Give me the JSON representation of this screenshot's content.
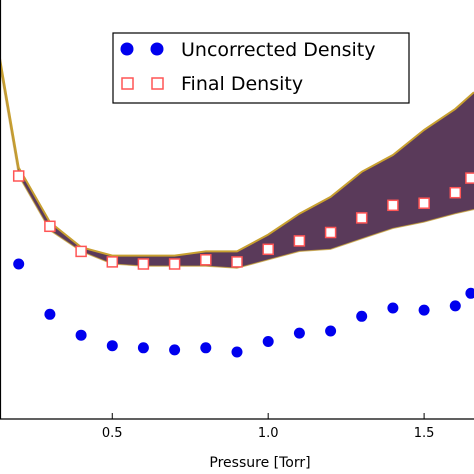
{
  "chart_data": {
    "type": "scatter",
    "xlabel": "Pressure [Torr]",
    "ylabel": "",
    "title": "",
    "xlim": [
      0.14,
      1.66
    ],
    "ylim": [
      0.0,
      1.0
    ],
    "x_ticks": [
      "0.5",
      "1.0",
      "1.5"
    ],
    "grid": false,
    "legend_position": "top-right",
    "series": [
      {
        "name": "Uncorrected Density",
        "marker": "filled-circle",
        "color": "#0000ee",
        "x": [
          0.2,
          0.3,
          0.4,
          0.5,
          0.6,
          0.7,
          0.8,
          0.9,
          1.0,
          1.1,
          1.2,
          1.3,
          1.4,
          1.5,
          1.6,
          1.65
        ],
        "y": [
          0.37,
          0.25,
          0.2,
          0.175,
          0.17,
          0.165,
          0.17,
          0.16,
          0.185,
          0.205,
          0.21,
          0.245,
          0.265,
          0.26,
          0.27,
          0.3
        ]
      },
      {
        "name": "Final Density",
        "marker": "open-square",
        "color": "#ff5555",
        "x": [
          0.2,
          0.3,
          0.4,
          0.5,
          0.6,
          0.7,
          0.8,
          0.9,
          1.0,
          1.1,
          1.2,
          1.3,
          1.4,
          1.5,
          1.6,
          1.65
        ],
        "y": [
          0.58,
          0.46,
          0.4,
          0.375,
          0.37,
          0.37,
          0.38,
          0.375,
          0.405,
          0.425,
          0.445,
          0.48,
          0.51,
          0.515,
          0.54,
          0.575
        ]
      }
    ],
    "band": {
      "color": "#5a3a5a",
      "edge_color": "#c8a030",
      "x": [
        0.14,
        0.2,
        0.3,
        0.4,
        0.5,
        0.6,
        0.7,
        0.8,
        0.9,
        1.0,
        1.1,
        1.2,
        1.3,
        1.4,
        1.5,
        1.6,
        1.66
      ],
      "upper": [
        0.86,
        0.6,
        0.47,
        0.41,
        0.39,
        0.39,
        0.39,
        0.4,
        0.4,
        0.44,
        0.49,
        0.53,
        0.59,
        0.63,
        0.69,
        0.74,
        0.78
      ],
      "lower": [
        0.84,
        0.58,
        0.45,
        0.4,
        0.37,
        0.365,
        0.365,
        0.365,
        0.36,
        0.38,
        0.4,
        0.405,
        0.43,
        0.455,
        0.47,
        0.49,
        0.5
      ]
    }
  }
}
